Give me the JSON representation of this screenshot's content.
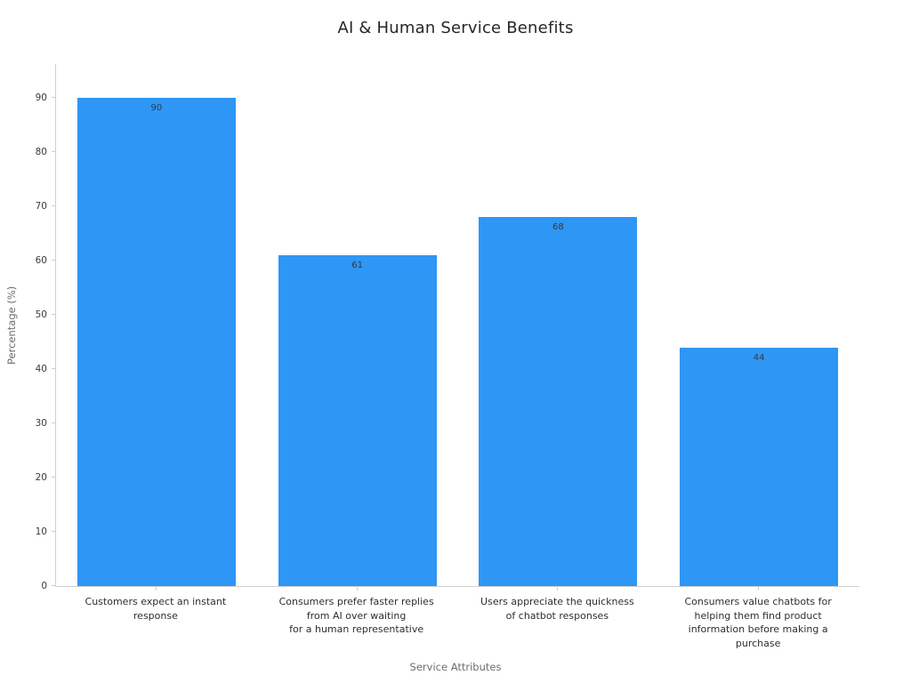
{
  "chart_data": {
    "type": "bar",
    "title": "AI & Human Service Benefits",
    "xlabel": "Service Attributes",
    "ylabel": "Percentage (%)",
    "categories": [
      "Customers expect an instant\nresponse",
      "Consumers prefer faster replies\nfrom AI over waiting\nfor a human representative",
      "Users appreciate the quickness\nof chatbot responses",
      "Consumers value chatbots for\nhelping them find product\ninformation before making a\npurchase"
    ],
    "values": [
      90,
      61,
      68,
      44
    ],
    "ylim": [
      0,
      90
    ],
    "yticks": [
      0,
      10,
      20,
      30,
      40,
      50,
      60,
      70,
      80,
      90
    ],
    "bar_color": "#2E96F5",
    "value_label_color": "#3a3a3a",
    "axis_color": "#cfcfcf",
    "grid": false,
    "legend": false
  }
}
